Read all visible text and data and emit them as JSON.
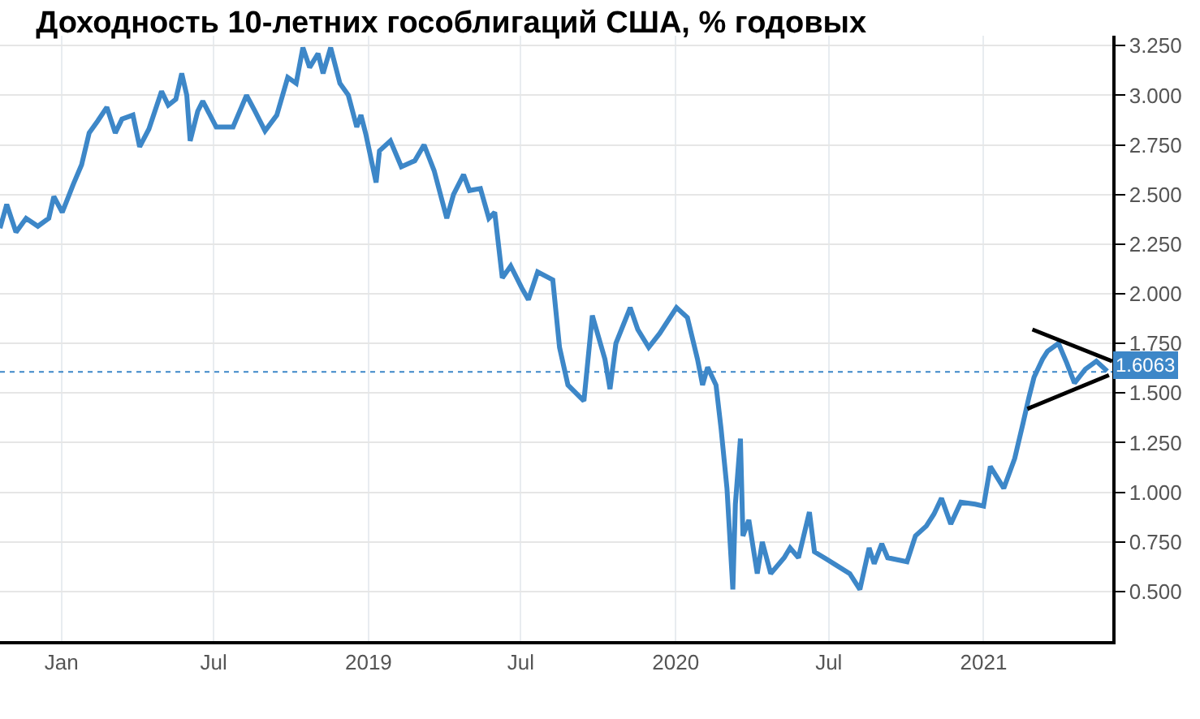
{
  "chart_data": {
    "type": "line",
    "title": "Доходность 10-летних гособлигаций США, % годовых",
    "xlim": [
      "2017-10-20",
      "2021-06-03"
    ],
    "ylim": [
      0.25,
      3.3
    ],
    "xticks": [
      {
        "value": "2018-01-01",
        "label": "Jan"
      },
      {
        "value": "2018-07-01",
        "label": "Jul"
      },
      {
        "value": "2019-01-01",
        "label": "2019"
      },
      {
        "value": "2019-07-01",
        "label": "Jul"
      },
      {
        "value": "2020-01-01",
        "label": "2020"
      },
      {
        "value": "2020-07-01",
        "label": "Jul"
      },
      {
        "value": "2021-01-01",
        "label": "2021"
      }
    ],
    "yticks": [
      {
        "value": 0.5,
        "label": "0.500"
      },
      {
        "value": 0.75,
        "label": "0.750"
      },
      {
        "value": 1.0,
        "label": "1.000"
      },
      {
        "value": 1.25,
        "label": "1.250"
      },
      {
        "value": 1.5,
        "label": "1.500"
      },
      {
        "value": 1.75,
        "label": "1.750"
      },
      {
        "value": 2.0,
        "label": "2.000"
      },
      {
        "value": 2.25,
        "label": "2.250"
      },
      {
        "value": 2.5,
        "label": "2.500"
      },
      {
        "value": 2.75,
        "label": "2.750"
      },
      {
        "value": 3.0,
        "label": "3.000"
      },
      {
        "value": 3.25,
        "label": "3.250"
      }
    ],
    "grid": true,
    "marker": "none",
    "line_style": "solid",
    "ref_lines": [
      {
        "axis": "y",
        "value": 1.6063,
        "label": "1.6063",
        "color": "#3d87c8",
        "line_style": "dotted"
      }
    ],
    "series": [
      {
        "color": "#3d87c8",
        "x": [
          "2017-10-20",
          "2017-10-28",
          "2017-11-08",
          "2017-11-20",
          "2017-12-04",
          "2017-12-17",
          "2017-12-23",
          "2018-01-02",
          "2018-01-15",
          "2018-01-25",
          "2018-02-03",
          "2018-02-13",
          "2018-02-24",
          "2018-03-06",
          "2018-03-14",
          "2018-03-27",
          "2018-04-04",
          "2018-04-15",
          "2018-04-30",
          "2018-05-08",
          "2018-05-17",
          "2018-05-24",
          "2018-05-30",
          "2018-06-03",
          "2018-06-12",
          "2018-06-18",
          "2018-07-04",
          "2018-07-24",
          "2018-08-09",
          "2018-08-19",
          "2018-08-31",
          "2018-09-14",
          "2018-09-27",
          "2018-10-07",
          "2018-10-15",
          "2018-10-23",
          "2018-11-02",
          "2018-11-08",
          "2018-11-17",
          "2018-11-28",
          "2018-12-08",
          "2018-12-18",
          "2018-12-23",
          "2018-12-29",
          "2019-01-10",
          "2019-01-14",
          "2019-01-27",
          "2019-02-09",
          "2019-02-25",
          "2019-03-08",
          "2019-03-20",
          "2019-04-04",
          "2019-04-12",
          "2019-04-24",
          "2019-05-01",
          "2019-05-14",
          "2019-05-24",
          "2019-05-31",
          "2019-06-09",
          "2019-06-19",
          "2019-07-02",
          "2019-07-10",
          "2019-07-21",
          "2019-08-08",
          "2019-08-16",
          "2019-08-26",
          "2019-09-14",
          "2019-09-24",
          "2019-10-09",
          "2019-10-15",
          "2019-10-22",
          "2019-11-08",
          "2019-11-17",
          "2019-11-30",
          "2019-12-13",
          "2020-01-02",
          "2020-01-15",
          "2020-01-27",
          "2020-02-02",
          "2020-02-08",
          "2020-02-18",
          "2020-02-24",
          "2020-03-02",
          "2020-03-09",
          "2020-03-12",
          "2020-03-18",
          "2020-03-21",
          "2020-03-28",
          "2020-04-07",
          "2020-04-13",
          "2020-04-23",
          "2020-05-09",
          "2020-05-16",
          "2020-05-26",
          "2020-06-08",
          "2020-06-14",
          "2020-07-07",
          "2020-07-26",
          "2020-08-07",
          "2020-08-18",
          "2020-08-24",
          "2020-09-02",
          "2020-09-09",
          "2020-10-02",
          "2020-10-12",
          "2020-10-25",
          "2020-11-03",
          "2020-11-12",
          "2020-11-23",
          "2020-12-05",
          "2020-12-22",
          "2021-01-01",
          "2021-01-09",
          "2021-01-25",
          "2021-02-07",
          "2021-02-17",
          "2021-02-24",
          "2021-03-02",
          "2021-03-12",
          "2021-03-18",
          "2021-03-31",
          "2021-04-10",
          "2021-04-19",
          "2021-05-02",
          "2021-05-15",
          "2021-05-28"
        ],
        "values": [
          2.33,
          2.45,
          2.31,
          2.38,
          2.34,
          2.38,
          2.49,
          2.41,
          2.55,
          2.65,
          2.81,
          2.87,
          2.94,
          2.81,
          2.88,
          2.9,
          2.74,
          2.83,
          3.02,
          2.95,
          2.98,
          3.11,
          3.0,
          2.77,
          2.92,
          2.97,
          2.84,
          2.84,
          3.0,
          2.92,
          2.82,
          2.9,
          3.09,
          3.06,
          3.24,
          3.14,
          3.21,
          3.11,
          3.24,
          3.06,
          3.0,
          2.84,
          2.9,
          2.8,
          2.56,
          2.72,
          2.77,
          2.64,
          2.67,
          2.75,
          2.62,
          2.38,
          2.5,
          2.6,
          2.52,
          2.53,
          2.38,
          2.41,
          2.08,
          2.14,
          2.03,
          1.97,
          2.11,
          2.07,
          1.73,
          1.54,
          1.46,
          1.89,
          1.67,
          1.52,
          1.75,
          1.93,
          1.82,
          1.73,
          1.8,
          1.93,
          1.88,
          1.67,
          1.54,
          1.63,
          1.54,
          1.32,
          1.02,
          0.51,
          0.94,
          1.27,
          0.78,
          0.86,
          0.59,
          0.75,
          0.59,
          0.67,
          0.72,
          0.67,
          0.9,
          0.7,
          0.64,
          0.59,
          0.51,
          0.72,
          0.64,
          0.74,
          0.67,
          0.65,
          0.78,
          0.83,
          0.89,
          0.97,
          0.84,
          0.95,
          0.94,
          0.93,
          1.13,
          1.02,
          1.17,
          1.35,
          1.48,
          1.58,
          1.67,
          1.71,
          1.75,
          1.65,
          1.55,
          1.62,
          1.66,
          1.61
        ]
      },
      {
        "type": "line",
        "color": "#000000",
        "x": [
          "2021-02-28",
          "2021-06-03"
        ],
        "values": [
          1.82,
          1.66
        ]
      },
      {
        "type": "line",
        "color": "#000000",
        "x": [
          "2021-02-22",
          "2021-05-30"
        ],
        "values": [
          1.42,
          1.59
        ]
      }
    ]
  }
}
